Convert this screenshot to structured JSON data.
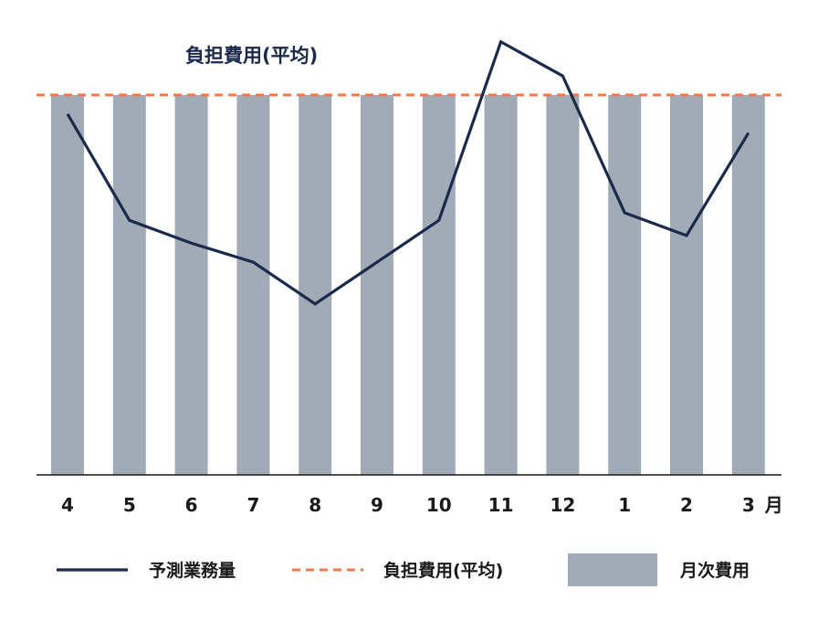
{
  "chart_data": {
    "type": "bar",
    "categories": [
      "4",
      "5",
      "6",
      "7",
      "8",
      "9",
      "10",
      "11",
      "12",
      "1",
      "2",
      "3"
    ],
    "x_unit": "月",
    "average_label": "負担費用(平均)",
    "average_value": 100,
    "series": [
      {
        "name": "月次費用",
        "kind": "bar",
        "color": "#a1abb7",
        "values": [
          100,
          100,
          100,
          100,
          100,
          100,
          100,
          100,
          100,
          100,
          100,
          100
        ]
      },
      {
        "name": "予測業務量",
        "kind": "line",
        "color": "#1b2a4a",
        "values": [
          95,
          67,
          61,
          56,
          45,
          56,
          67,
          114,
          105,
          69,
          63,
          90
        ]
      },
      {
        "name": "負担費用(平均)",
        "kind": "dashed-line",
        "color": "#f07850",
        "values": [
          100,
          100,
          100,
          100,
          100,
          100,
          100,
          100,
          100,
          100,
          100,
          100
        ]
      }
    ],
    "ylim": [
      0,
      125
    ],
    "grid": false,
    "legend": "bottom"
  }
}
